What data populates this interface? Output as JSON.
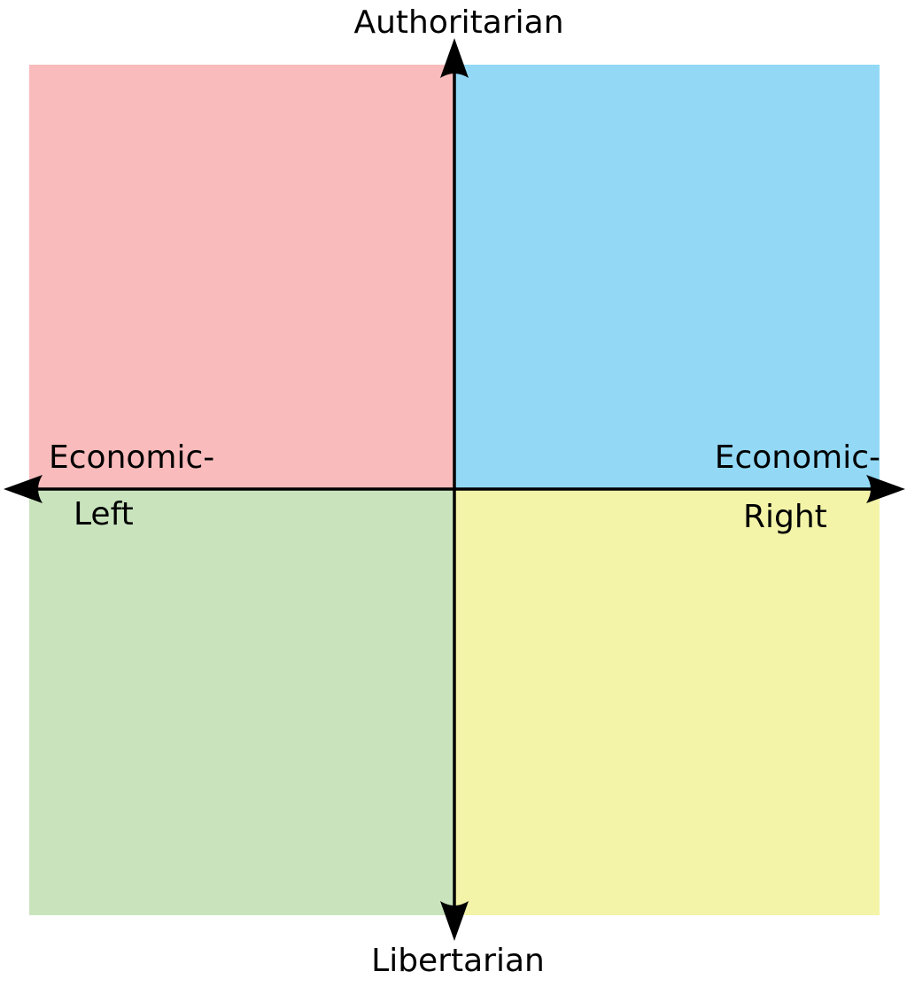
{
  "labels": {
    "top": "Authoritarian",
    "bottom": "Libertarian",
    "left_line1": "Economic-",
    "left_line2": "Left",
    "right_line1": "Economic-",
    "right_line2": "Right"
  },
  "quadrants": {
    "top_left": {
      "color": "#f9bbbb"
    },
    "top_right": {
      "color": "#93d9f6"
    },
    "bottom_left": {
      "color": "#c9e4bd"
    },
    "bottom_right": {
      "color": "#f3f4a8"
    }
  },
  "axis_color": "#000000"
}
